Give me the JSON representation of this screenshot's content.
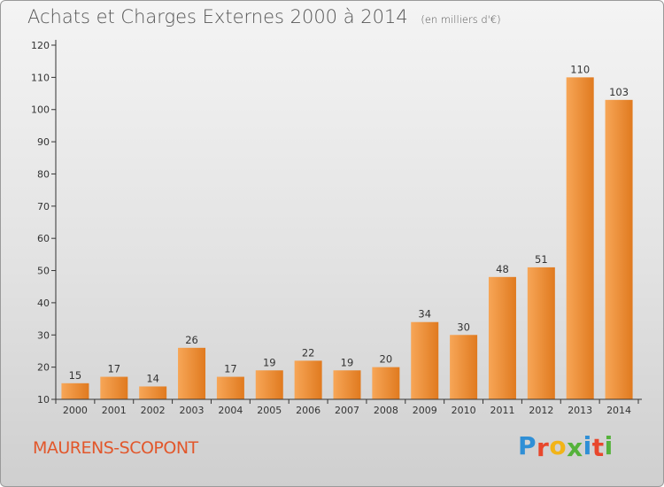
{
  "header": {
    "title": "Achats et Charges Externes 2000 à 2014",
    "subtitle": "(en milliers d'€)"
  },
  "footer": {
    "commune": "MAURENS-SCOPONT",
    "logo_letters": [
      "P",
      "r",
      "o",
      "x",
      "i",
      "t",
      "i"
    ],
    "logo_colors": [
      "#2f8fd6",
      "#e8472c",
      "#f2b418",
      "#55b23b",
      "#2f8fd6",
      "#e8472c",
      "#55b23b"
    ]
  },
  "colors": {
    "bar_light": "#f7a657",
    "bar_dark": "#e07a1f",
    "axis": "#333333"
  },
  "chart_data": {
    "type": "bar",
    "categories": [
      "2000",
      "2001",
      "2002",
      "2003",
      "2004",
      "2005",
      "2006",
      "2007",
      "2008",
      "2009",
      "2010",
      "2011",
      "2012",
      "2013",
      "2014"
    ],
    "values": [
      15,
      17,
      14,
      26,
      17,
      19,
      22,
      19,
      20,
      34,
      30,
      48,
      51,
      110,
      103
    ],
    "ylim": [
      10,
      120
    ],
    "yticks": [
      10,
      20,
      30,
      40,
      50,
      60,
      70,
      80,
      90,
      100,
      110,
      120
    ],
    "grid": false,
    "legend": "none"
  }
}
